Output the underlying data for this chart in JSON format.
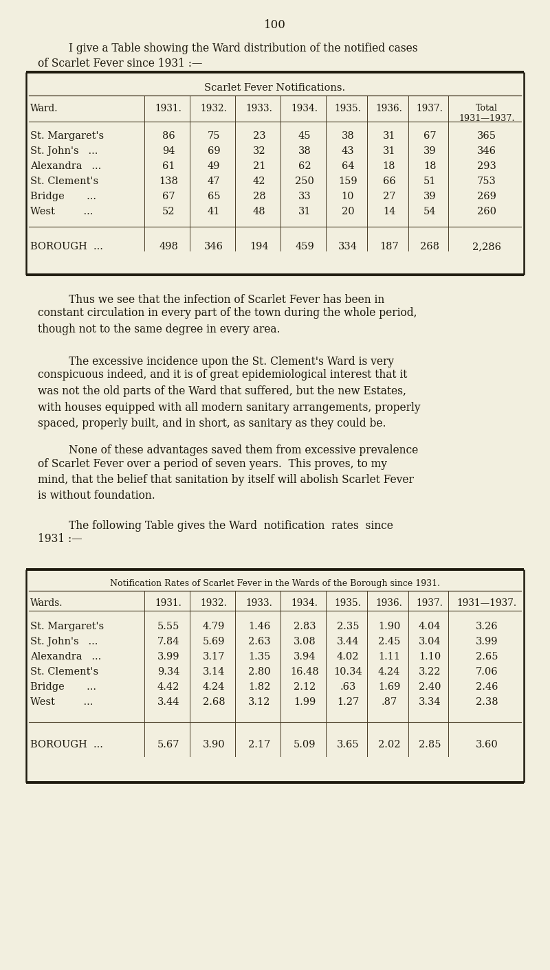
{
  "bg_color": "#f2efdf",
  "page_number": "100",
  "intro_text_1": "I give a Table showing the Ward distribution of the notified cases",
  "intro_text_2": "of Scarlet Fever since 1931 :—",
  "table1_title": "Scarlet Fever Notifications.",
  "table1_col_headers": [
    "Ward.",
    "1931.",
    "1932.",
    "1933.",
    "1934.",
    "1935.",
    "1936.",
    "1937.",
    "Total\n1931—1937."
  ],
  "table1_rows": [
    [
      "St. Margaret's",
      "86",
      "75",
      "23",
      "45",
      "38",
      "31",
      "67",
      "365"
    ],
    [
      "St. John's   ...",
      "94",
      "69",
      "32",
      "38",
      "43",
      "31",
      "39",
      "346"
    ],
    [
      "Alexandra   ...",
      "61",
      "49",
      "21",
      "62",
      "64",
      "18",
      "18",
      "293"
    ],
    [
      "St. Clement's",
      "138",
      "47",
      "42",
      "250",
      "159",
      "66",
      "51",
      "753"
    ],
    [
      "Bridge       ...",
      "67",
      "65",
      "28",
      "33",
      "10",
      "27",
      "39",
      "269"
    ],
    [
      "West         ...",
      "52",
      "41",
      "48",
      "31",
      "20",
      "14",
      "54",
      "260"
    ]
  ],
  "table1_borough": [
    "BOROUGH  ...",
    "498",
    "346",
    "194",
    "459",
    "334",
    "187",
    "268",
    "2,286"
  ],
  "para1_indent": "Thus we see that the infection of Scarlet Fever has been in",
  "para1_rest": "constant circulation in every part of the town during the whole period,\nthough not to the same degree in every area.",
  "para2_indent": "The excessive incidence upon the St. Clement's Ward is very",
  "para2_rest": "conspicuous indeed, and it is of great epidemiological interest that it\nwas not the old parts of the Ward that suffered, but the new Estates,\nwith houses equipped with all modern sanitary arrangements, properly\nspaced, properly built, and in short, as sanitary as they could be.",
  "para3_indent": "None of these advantages saved them from excessive prevalence",
  "para3_rest": "of Scarlet Fever over a period of seven years.  This proves, to my\nmind, that the belief that sanitation by itself will abolish Scarlet Fever\nis without foundation.",
  "para4_line1": "The following Table gives the Ward  notification  rates  since",
  "para4_line2": "1931 :—",
  "table2_title": "Notification Rates of Scarlet Fever in the Wards of the Borough since 1931.",
  "table2_col_headers": [
    "Wards.",
    "1931.",
    "1932.",
    "1933.",
    "1934.",
    "1935.",
    "1936.",
    "1937.",
    "1931—1937."
  ],
  "table2_rows": [
    [
      "St. Margaret's",
      "5.55",
      "4.79",
      "1.46",
      "2.83",
      "2.35",
      "1.90",
      "4.04",
      "3.26"
    ],
    [
      "St. John's   ...",
      "7.84",
      "5.69",
      "2.63",
      "3.08",
      "3.44",
      "2.45",
      "3.04",
      "3.99"
    ],
    [
      "Alexandra   ...",
      "3.99",
      "3.17",
      "1.35",
      "3.94",
      "4.02",
      "1.11",
      "1.10",
      "2.65"
    ],
    [
      "St. Clement's",
      "9.34",
      "3.14",
      "2.80",
      "16.48",
      "10.34",
      "4.24",
      "3.22",
      "7.06"
    ],
    [
      "Bridge       ...",
      "4.42",
      "4.24",
      "1.82",
      "2.12",
      ".63",
      "1.69",
      "2.40",
      "2.46"
    ],
    [
      "West         ...",
      "3.44",
      "2.68",
      "3.12",
      "1.99",
      "1.27",
      ".87",
      "3.34",
      "2.38"
    ]
  ],
  "table2_borough": [
    "BOROUGH  ...",
    "5.67",
    "3.90",
    "2.17",
    "5.09",
    "3.65",
    "2.02",
    "2.85",
    "3.60"
  ],
  "text_color": "#1e1a0e",
  "table_border_color": "#1e1a0e",
  "table_line_color": "#4a3e28"
}
